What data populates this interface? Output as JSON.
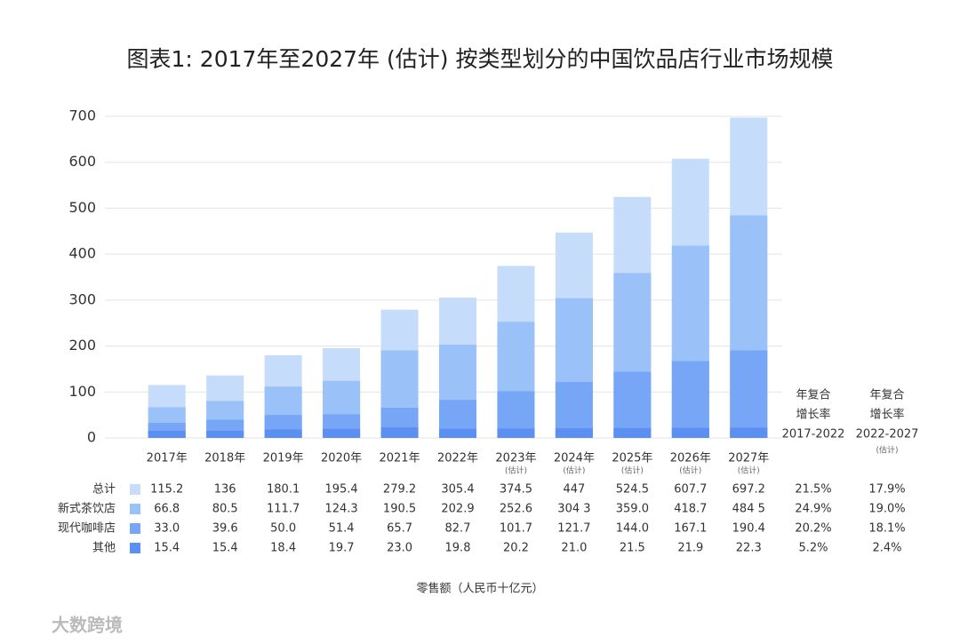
{
  "chart_data": {
    "type": "bar",
    "title": "图表1: 2017年至2027年 (估计) 按类型划分的中国饮品店行业市场规模",
    "categories": [
      "2017年",
      "2018年",
      "2019年",
      "2020年",
      "2021年",
      "2022年",
      "2023年",
      "2024年",
      "2025年",
      "2026年",
      "2027年"
    ],
    "category_notes": [
      null,
      null,
      null,
      null,
      null,
      null,
      "(估计)",
      "(估计)",
      "(估计)",
      "(估计)",
      "(估计)"
    ],
    "series": [
      {
        "name": "总计",
        "color": "#c6dcfb",
        "values": [
          115.2,
          136,
          180.1,
          195.4,
          279.2,
          305.4,
          374.5,
          447,
          524.5,
          607.7,
          697.2
        ],
        "value_labels": [
          "115.2",
          "136",
          "180.1",
          "195.4",
          "279.2",
          "305.4",
          "374.5",
          "447",
          "524.5",
          "607.7",
          "697.2"
        ]
      },
      {
        "name": "新式茶饮店",
        "color": "#9ac1f8",
        "values": [
          66.8,
          80.5,
          111.7,
          124.3,
          190.5,
          202.9,
          252.6,
          304.3,
          359.0,
          418.7,
          484.5
        ],
        "value_labels": [
          "66.8",
          "80.5",
          "111.7",
          "124.3",
          "190.5",
          "202.9",
          "252.6",
          "304 3",
          "359.0",
          "418.7",
          "484 5"
        ]
      },
      {
        "name": "现代咖啡店",
        "color": "#76a6f5",
        "values": [
          33.0,
          39.6,
          50.0,
          51.4,
          65.7,
          82.7,
          101.7,
          121.7,
          144.0,
          167.1,
          190.4
        ],
        "value_labels": [
          "33.0",
          "39.6",
          "50.0",
          "51.4",
          "65.7",
          "82.7",
          "101.7",
          "121.7",
          "144.0",
          "167.1",
          "190.4"
        ]
      },
      {
        "name": "其他",
        "color": "#5c8ff2",
        "values": [
          15.4,
          15.4,
          18.4,
          19.7,
          23.0,
          19.8,
          20.2,
          21.0,
          21.5,
          21.9,
          22.3
        ],
        "value_labels": [
          "15.4",
          "15.4",
          "18.4",
          "19.7",
          "23.0",
          "19.8",
          "20.2",
          "21.0",
          "21.5",
          "21.9",
          "22.3"
        ]
      }
    ],
    "cagr_columns": [
      {
        "header": [
          "年复合",
          "增长率",
          "2017-2022"
        ],
        "note": null,
        "values": [
          21.5,
          24.9,
          20.2,
          5.2
        ],
        "value_labels": [
          "21.5%",
          "24.9%",
          "20.2%",
          "5.2%"
        ]
      },
      {
        "header": [
          "年复合",
          "增长率",
          "2022-2027"
        ],
        "note": "(估计)",
        "values": [
          17.9,
          19.0,
          18.1,
          2.4
        ],
        "value_labels": [
          "17.9%",
          "19.0%",
          "18.1%",
          "2.4%"
        ]
      }
    ],
    "ylim": [
      0,
      700
    ],
    "yticks": [
      0,
      100,
      200,
      300,
      400,
      500,
      600,
      700
    ],
    "grid": true,
    "xlabel": "零售额（人民币十亿元）",
    "watermark": "大数跨境"
  }
}
